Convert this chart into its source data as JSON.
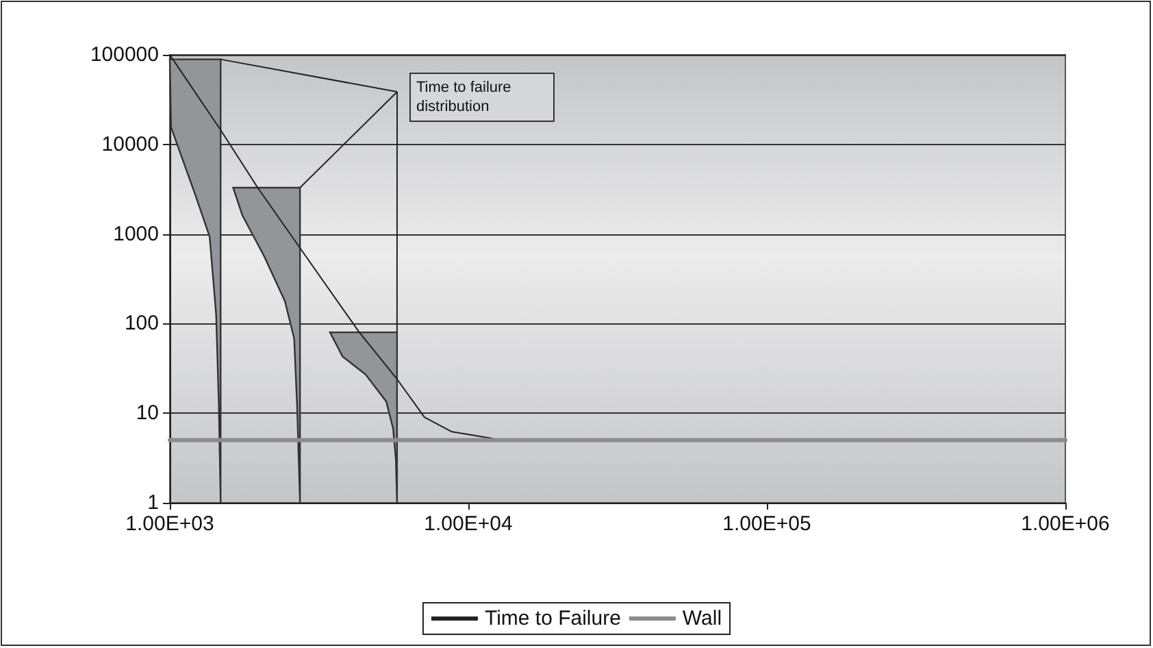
{
  "chart_data": {
    "type": "line",
    "log": "xy",
    "xlim": [
      1000,
      1000000
    ],
    "ylim": [
      1,
      100000
    ],
    "xticks": [
      {
        "value": 1000,
        "label": "1.00E+03"
      },
      {
        "value": 10000,
        "label": "1.00E+04"
      },
      {
        "value": 100000,
        "label": "1.00E+05"
      },
      {
        "value": 1000000,
        "label": "1.00E+06"
      }
    ],
    "yticks": [
      1,
      10,
      100,
      1000,
      10000,
      100000
    ],
    "grid": "y",
    "legend": "bottom",
    "marker": "none",
    "line_style": "solid",
    "annotations": [
      {
        "text": "Time to failure distribution",
        "x": 1480,
        "y": 89000
      }
    ],
    "series": [
      {
        "name": "Time to Failure",
        "color": "#222222",
        "x": [
          1000,
          1480,
          1970,
          2730,
          4300,
          5770,
          7130,
          8810,
          12100
        ],
        "values": [
          100000,
          14500,
          3290,
          698,
          81,
          24,
          9,
          6.2,
          5.2
        ]
      },
      {
        "name": "Wall",
        "color": "#8c8c8c",
        "x": [
          1000,
          1000000
        ],
        "values": [
          5,
          5
        ]
      },
      {
        "type": "area",
        "color": "#939598",
        "x": [
          1480,
          1000,
          1010,
          1220,
          1360,
          1430,
          1460,
          1480
        ],
        "values": [
          89000,
          89000,
          15500,
          2680,
          930,
          124,
          12,
          1
        ]
      },
      {
        "type": "area",
        "color": "#939598",
        "x": [
          2730,
          1630,
          1750,
          2070,
          2430,
          2610,
          2670,
          2730
        ],
        "values": [
          3290,
          3290,
          1620,
          565,
          178,
          68,
          12,
          1
        ]
      },
      {
        "type": "area",
        "color": "#939598",
        "x": [
          5770,
          3440,
          3790,
          4530,
          5310,
          5600,
          5720,
          5770
        ],
        "values": [
          80,
          80,
          43,
          27,
          13.5,
          6.7,
          3,
          1
        ]
      }
    ]
  }
}
